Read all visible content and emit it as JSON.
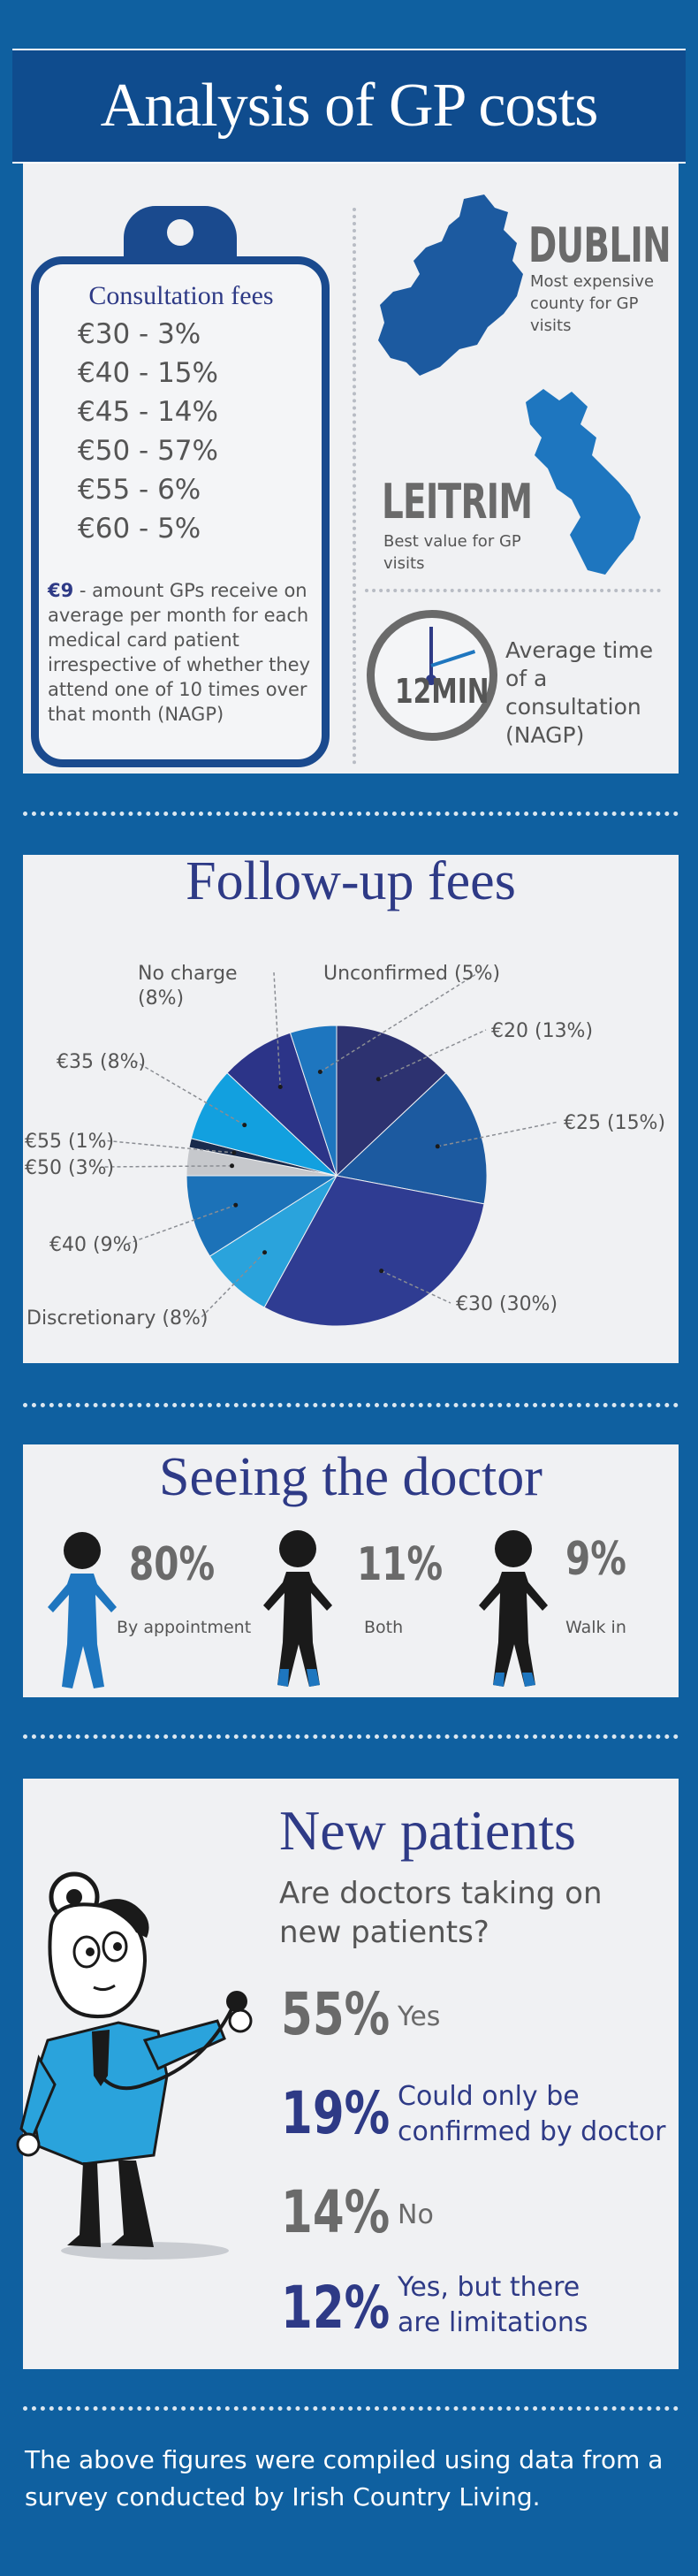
{
  "header": {
    "title": "Analysis of GP costs"
  },
  "consultation": {
    "title": "Consultation fees",
    "fees": [
      "€30 - 3%",
      "€40 - 15%",
      "€45 - 14%",
      "€50 - 57%",
      "€55 - 6%",
      "€60 - 5%"
    ],
    "note_amount": "€9",
    "note_text": " - amount GPs receive on average per month for each medical card patient irrespective of whether they attend one of 10 times over that month (NAGP)"
  },
  "counties": {
    "dublin": {
      "name": "DUBLIN",
      "desc": "Most expensive county for GP visits"
    },
    "leitrim": {
      "name": "LEITRIM",
      "desc": "Best value for GP visits"
    }
  },
  "clock": {
    "label": "12MIN",
    "text": "Average time of a consultation (NAGP)"
  },
  "follow_up": {
    "title": "Follow-up fees"
  },
  "chart_data": {
    "type": "pie",
    "title": "Follow-up fees",
    "slices": [
      {
        "label": "€20",
        "value": 13,
        "text": "€20  (13%)",
        "color": "#2d3270"
      },
      {
        "label": "€25",
        "value": 15,
        "text": "€25 (15%)",
        "color": "#1c5aa0"
      },
      {
        "label": "€30",
        "value": 30,
        "text": "€30 (30%)",
        "color": "#2f3c92"
      },
      {
        "label": "Discretionary",
        "value": 8,
        "text": "Discretionary (8%)",
        "color": "#2aa3dc"
      },
      {
        "label": "€40",
        "value": 9,
        "text": "€40 (9%)",
        "color": "#1c72b8"
      },
      {
        "label": "€50",
        "value": 3,
        "text": "€50 (3%)",
        "color": "#c6c8cc"
      },
      {
        "label": "€55",
        "value": 1,
        "text": "€55 (1%)",
        "color": "#1a2b4c"
      },
      {
        "label": "€35",
        "value": 8,
        "text": "€35 (8%)",
        "color": "#12a0df"
      },
      {
        "label": "No charge",
        "value": 8,
        "text": "No charge (8%)",
        "color": "#2c3488"
      },
      {
        "label": "Unconfirmed",
        "value": 5,
        "text": "Unconfirmed (5%)",
        "color": "#1e76bf"
      }
    ]
  },
  "seeing": {
    "title": "Seeing the doctor",
    "items": [
      {
        "pct": "80%",
        "label": "By appointment"
      },
      {
        "pct": "11%",
        "label": "Both"
      },
      {
        "pct": "9%",
        "label": "Walk in"
      }
    ]
  },
  "new_patients": {
    "title": "New patients",
    "question": "Are doctors taking on new patients?",
    "answers": [
      {
        "pct": "55%",
        "label": "Yes"
      },
      {
        "pct": "19%",
        "label": "Could only be confirmed by doctor"
      },
      {
        "pct": "14%",
        "label": "No"
      },
      {
        "pct": "12%",
        "label": "Yes, but there are limitations"
      }
    ]
  },
  "footer": {
    "text": "The above figures were compiled using data from a survey conducted by Irish Country Living."
  },
  "colors": {
    "background": "#0f60a0",
    "navy": "#2e3a86",
    "panel": "#f0f1f3",
    "header": "#0f4c8e"
  }
}
